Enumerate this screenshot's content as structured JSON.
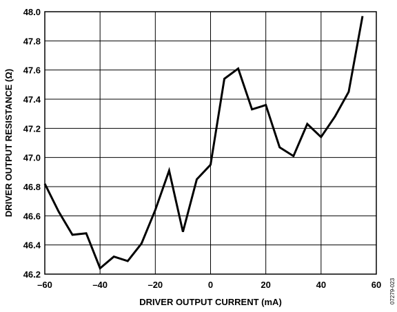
{
  "chart_data": {
    "type": "line",
    "title": "",
    "xlabel": "DRIVER OUTPUT CURRENT (mA)",
    "ylabel": "DRIVER OUTPUT RESISTANCE (Ω)",
    "xlim": [
      -60,
      60
    ],
    "ylim": [
      46.2,
      48.0
    ],
    "xticks": [
      -60,
      -40,
      -20,
      0,
      20,
      40,
      60
    ],
    "yticks": [
      46.2,
      46.4,
      46.6,
      46.8,
      47.0,
      47.2,
      47.4,
      47.6,
      47.8,
      48.0
    ],
    "xtick_labels": [
      "–60",
      "–40",
      "–20",
      "0",
      "20",
      "40",
      "60"
    ],
    "ytick_labels": [
      "46.2",
      "46.4",
      "46.6",
      "46.8",
      "47.0",
      "47.2",
      "47.4",
      "47.6",
      "47.8",
      "48.0"
    ],
    "grid": true,
    "series": [
      {
        "x": [
          -60,
          -55,
          -50,
          -45,
          -40,
          -35,
          -30,
          -25,
          -20,
          -15,
          -10,
          -5,
          0,
          5,
          10,
          15,
          20,
          25,
          30,
          35,
          40,
          45,
          50,
          55
        ],
        "y": [
          46.82,
          46.63,
          46.47,
          46.48,
          46.24,
          46.32,
          46.29,
          46.41,
          46.64,
          46.91,
          46.49,
          46.85,
          46.95,
          47.54,
          47.61,
          47.33,
          47.36,
          47.07,
          47.01,
          47.23,
          47.14,
          47.28,
          47.45,
          47.97
        ]
      }
    ],
    "figure_code": "07279-023"
  }
}
